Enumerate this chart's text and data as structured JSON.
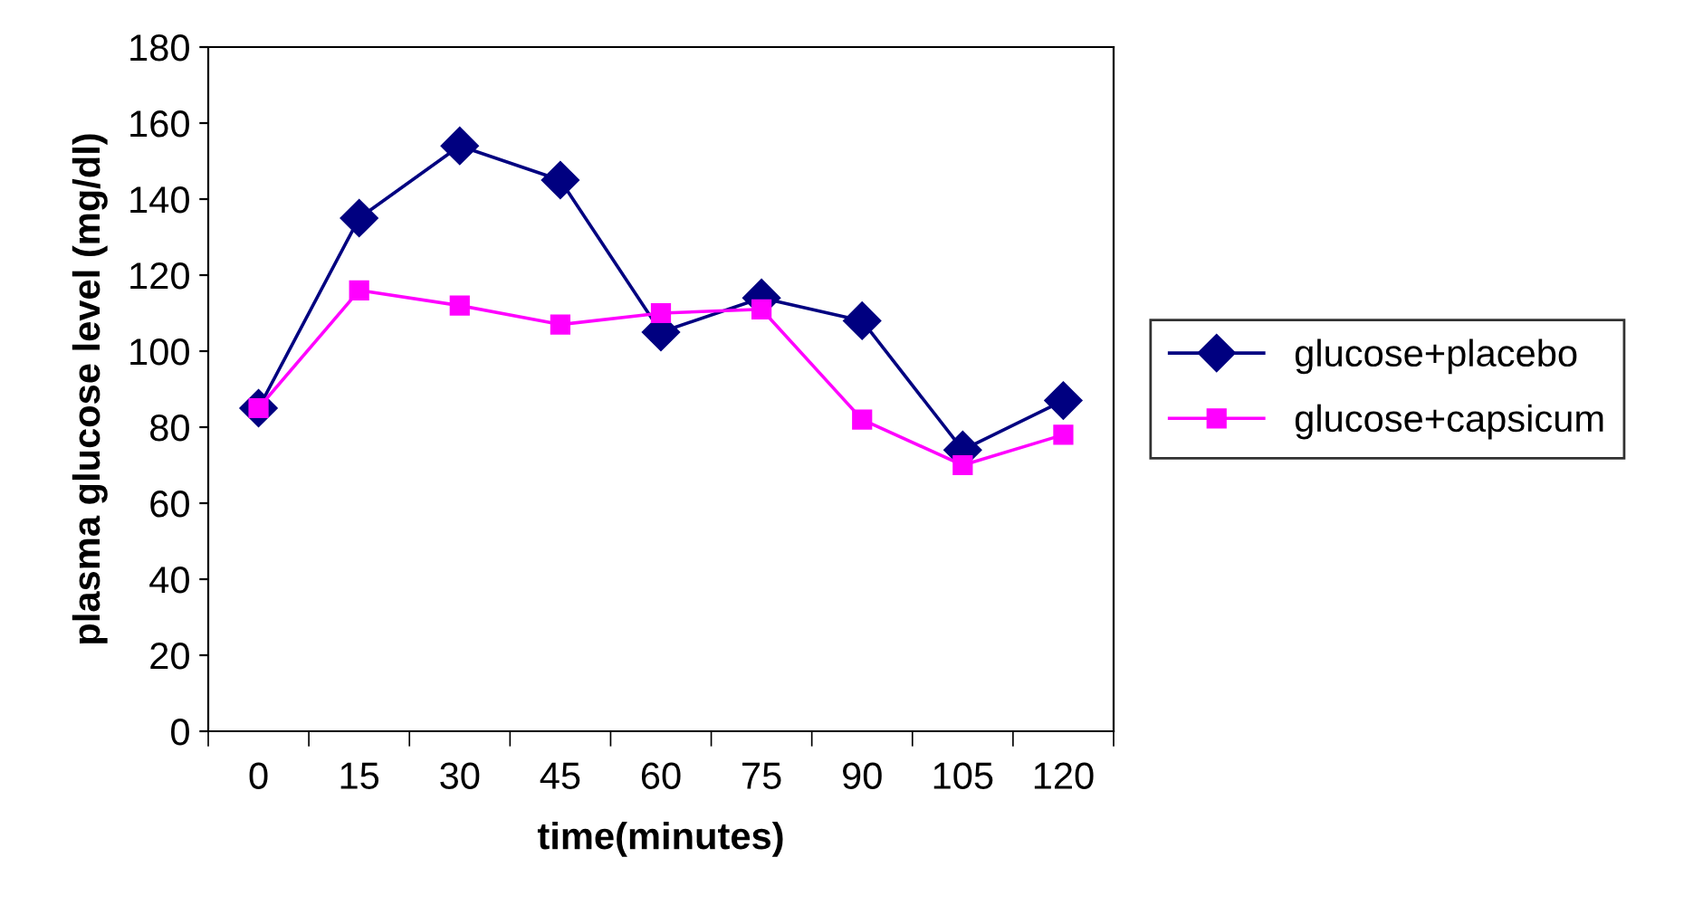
{
  "chart_data": {
    "type": "line",
    "xlabel": "time(minutes)",
    "ylabel": "plasma glucose level (mg/dl)",
    "categories": [
      "0",
      "15",
      "30",
      "45",
      "60",
      "75",
      "90",
      "105",
      "120"
    ],
    "series": [
      {
        "name": "glucose+placebo",
        "color": "#000080",
        "marker": "diamond",
        "values": [
          85,
          135,
          154,
          145,
          105,
          114,
          108,
          74,
          87
        ]
      },
      {
        "name": "glucose+capsicum",
        "color": "#ff00ff",
        "marker": "square",
        "values": [
          85,
          116,
          112,
          107,
          110,
          111,
          82,
          70,
          78
        ]
      }
    ],
    "ylim": [
      0,
      180
    ],
    "yticks": [
      0,
      20,
      40,
      60,
      80,
      100,
      120,
      140,
      160,
      180
    ],
    "grid": false,
    "legend": "right"
  }
}
